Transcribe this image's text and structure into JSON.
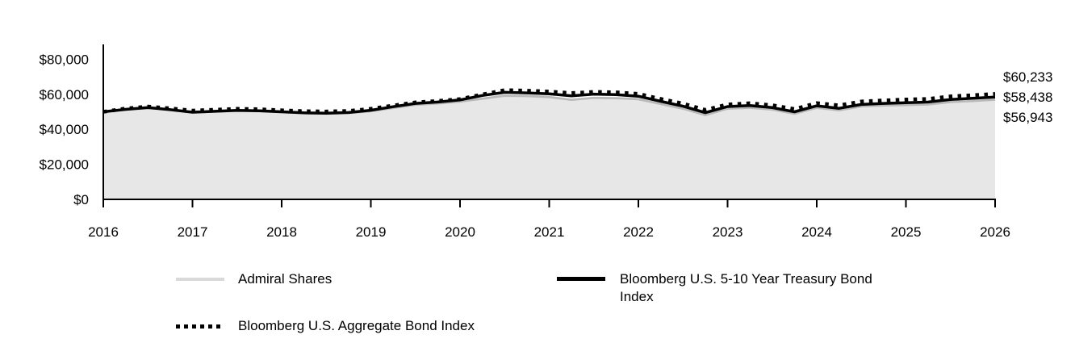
{
  "chart_data": {
    "type": "area",
    "title": "",
    "xlabel": "",
    "ylabel": "",
    "grid": false,
    "legend_position": "bottom",
    "xlim": [
      2016,
      2026
    ],
    "ylim": [
      0,
      88500
    ],
    "x_ticks": [
      "2016",
      "2017",
      "2018",
      "2019",
      "2020",
      "2021",
      "2022",
      "2023",
      "2024",
      "2025",
      "2026"
    ],
    "x_tick_values": [
      2016,
      2017,
      2018,
      2019,
      2020,
      2021,
      2022,
      2023,
      2024,
      2025,
      2026
    ],
    "y_ticks": [
      "$80,000",
      "$60,000",
      "$40,000",
      "$20,000",
      "$0"
    ],
    "y_tick_values": [
      80000,
      60000,
      40000,
      20000,
      0
    ],
    "x": [
      2016.0,
      2016.25,
      2016.5,
      2016.75,
      2017.0,
      2017.25,
      2017.5,
      2017.75,
      2018.0,
      2018.25,
      2018.5,
      2018.75,
      2019.0,
      2019.25,
      2019.5,
      2019.75,
      2020.0,
      2020.25,
      2020.5,
      2020.75,
      2021.0,
      2021.25,
      2021.5,
      2021.75,
      2022.0,
      2022.25,
      2022.5,
      2022.75,
      2023.0,
      2023.25,
      2023.5,
      2023.75,
      2024.0,
      2024.25,
      2024.5,
      2024.75,
      2025.0,
      2025.25,
      2025.5,
      2025.75,
      2026.0
    ],
    "series": [
      {
        "name": "Admiral Shares",
        "style": "solid",
        "color": "#b9b9b9",
        "legend_color": "#d9d9d9",
        "fill_color": "#e7e7e7",
        "end_label": "$56,943",
        "end_value": 56943,
        "values": [
          50000,
          51200,
          52100,
          51300,
          49600,
          50100,
          50600,
          50400,
          49800,
          49200,
          49000,
          49300,
          50400,
          52200,
          54000,
          54800,
          55800,
          57500,
          59200,
          59000,
          58400,
          56900,
          58000,
          57800,
          57200,
          54500,
          51800,
          48100,
          51800,
          52300,
          51300,
          48900,
          52300,
          50900,
          53100,
          53600,
          53900,
          54200,
          55600,
          56200,
          56943
        ]
      },
      {
        "name": "Bloomberg U.S. 5-10 Year Treasury Bond Index",
        "style": "solid",
        "color": "#000000",
        "legend_color": "#000000",
        "end_label": "$58,438",
        "end_value": 58438,
        "values": [
          50000,
          51400,
          52400,
          51200,
          49800,
          50300,
          50800,
          50600,
          50000,
          49400,
          49200,
          49600,
          50900,
          52900,
          54800,
          55600,
          56800,
          59300,
          61100,
          60800,
          60300,
          59100,
          60100,
          59800,
          58900,
          56000,
          53200,
          49500,
          53000,
          53600,
          52400,
          50000,
          53400,
          52000,
          54200,
          54800,
          55200,
          55600,
          57000,
          57700,
          58438
        ]
      },
      {
        "name": "Bloomberg U.S. Aggregate Bond Index",
        "style": "dotted",
        "color": "#000000",
        "legend_color": "#000000",
        "end_label": "$60,233",
        "end_value": 60233,
        "values": [
          50000,
          51900,
          53000,
          52000,
          50700,
          51200,
          51700,
          51500,
          50900,
          50400,
          50200,
          50500,
          51700,
          53600,
          55400,
          56200,
          57300,
          59900,
          62400,
          62100,
          61600,
          60700,
          61400,
          61100,
          60300,
          57400,
          54700,
          51100,
          54200,
          54900,
          53800,
          51600,
          55000,
          53700,
          55900,
          56500,
          57000,
          57400,
          58800,
          59500,
          60233
        ]
      }
    ],
    "end_labels": [
      "$60,233",
      "$58,438",
      "$56,943"
    ]
  },
  "legend": {
    "items": [
      {
        "label": "Admiral Shares"
      },
      {
        "label": "Bloomberg U.S. 5-10 Year Treasury Bond Index"
      },
      {
        "label": "Bloomberg U.S. Aggregate Bond Index"
      }
    ]
  }
}
